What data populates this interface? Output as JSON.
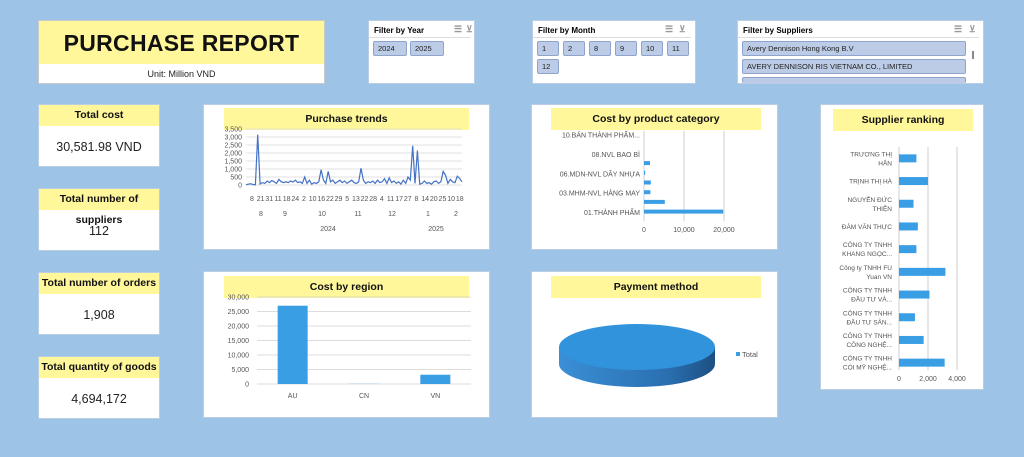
{
  "header": {
    "title": "PURCHASE REPORT",
    "unit": "Unit: Million VND"
  },
  "kpis": [
    {
      "label": "Total cost",
      "value": "30,581.98 VND"
    },
    {
      "label": "Total number of suppliers",
      "value": "112"
    },
    {
      "label": "Total number of orders",
      "value": "1,908"
    },
    {
      "label": "Total quantity of goods",
      "value": "4,694,172"
    }
  ],
  "filters": {
    "year": {
      "title": "Filter by Year",
      "options": [
        "2024",
        "2025"
      ]
    },
    "month": {
      "title": "Filter by Month",
      "options": [
        "1",
        "2",
        "8",
        "9",
        "10",
        "11",
        "12"
      ]
    },
    "suppliers": {
      "title": "Filter by Suppliers",
      "options": [
        "Avery Dennison Hong Kong B.V",
        "AVERY DENNISON RIS VIETNAM CO., LIMITED"
      ]
    },
    "icons": [
      "multi-select-icon",
      "clear-filter-icon"
    ]
  },
  "colors": {
    "bar": "#3a9ee4",
    "line": "#4472c4",
    "title_bg": "#fff79a",
    "background": "#9dc3e6"
  },
  "chart_data": [
    {
      "id": "trends",
      "type": "line",
      "title": "Purchase trends",
      "ylim": [
        0,
        3500
      ],
      "yticks": [
        "0",
        "500",
        "1,000",
        "1,500",
        "2,000",
        "2,500",
        "3,000",
        "3,500"
      ],
      "day_labels": [
        "8",
        "21",
        "31",
        "11",
        "18",
        "24",
        "2",
        "10",
        "16",
        "22",
        "29",
        "5",
        "13",
        "22",
        "28",
        "4",
        "11",
        "17",
        "27",
        "8",
        "14",
        "20",
        "25",
        "10",
        "18"
      ],
      "month_labels": [
        "8",
        "9",
        "10",
        "11",
        "12",
        "1",
        "2"
      ],
      "year_labels": [
        "2024",
        "2025"
      ],
      "values": [
        20,
        50,
        80,
        30,
        10,
        3150,
        60,
        150,
        100,
        250,
        150,
        280,
        200,
        100,
        350,
        200,
        150,
        200,
        150,
        250,
        180,
        300,
        150,
        200,
        100,
        500,
        100,
        300,
        50,
        150,
        100,
        200,
        950,
        300,
        100,
        850,
        200,
        300,
        100,
        200,
        300,
        150,
        250,
        100,
        200,
        300,
        150,
        100,
        200,
        1050,
        300,
        100,
        200,
        150,
        250,
        100,
        300,
        150,
        200,
        400,
        100,
        450,
        150,
        250,
        100,
        200,
        50,
        300,
        100,
        500,
        300,
        2450,
        100,
        2150,
        50,
        100,
        250,
        100,
        150,
        50,
        200,
        250,
        100,
        200,
        850,
        600,
        100,
        350,
        200,
        150,
        550,
        400,
        200
      ]
    },
    {
      "id": "category",
      "type": "bar",
      "orientation": "horizontal",
      "title": "Cost by product category",
      "categories": [
        "10.BÁN THÀNH PHẨM...",
        "",
        "08.NVL BAO BÌ",
        "",
        "06.MDN-NVL DÂY NHỰA",
        "",
        "03.MHM-NVL HÀNG MAY",
        "",
        "01.THÀNH PHẨM"
      ],
      "values": [
        0,
        0,
        1500,
        300,
        1700,
        1600,
        5200,
        19800,
        0
      ],
      "xlim": [
        0,
        25000
      ],
      "xticks": [
        "0",
        "10,000",
        "20,000"
      ]
    },
    {
      "id": "supplier",
      "type": "bar",
      "orientation": "horizontal",
      "title": "Supplier ranking",
      "categories": [
        [
          "TRƯƠNG THỊ",
          "HÂN"
        ],
        [
          "TRỊNH THỊ HÀ"
        ],
        [
          "NGUYỄN ĐỨC",
          "THIỆN"
        ],
        [
          "ĐÀM VĂN THỰC"
        ],
        [
          "CÔNG TY TNHH",
          "KHANG NGỌC..."
        ],
        [
          "Công ty TNHH FU",
          "Yuan VN"
        ],
        [
          "CÔNG TY TNHH",
          "ĐẦU TƯ VÀ..."
        ],
        [
          "CÔNG TY TNHH",
          "ĐẦU TƯ SẢN..."
        ],
        [
          "CÔNG TY TNHH",
          "CÔNG NGHỆ..."
        ],
        [
          "CÔNG TY TNHH",
          "CÓI MỸ NGHỆ..."
        ]
      ],
      "values": [
        1200,
        2000,
        1000,
        1300,
        1200,
        3200,
        2100,
        1100,
        1700,
        3150
      ],
      "xlim": [
        0,
        4000
      ],
      "xticks": [
        "0",
        "2,000",
        "4,000"
      ]
    },
    {
      "id": "region",
      "type": "bar",
      "title": "Cost by region",
      "categories": [
        "AU",
        "CN",
        "VN"
      ],
      "values": [
        27000,
        50,
        3200
      ],
      "ylim": [
        0,
        30000
      ],
      "yticks": [
        "0",
        "5,000",
        "10,000",
        "15,000",
        "20,000",
        "25,000",
        "30,000"
      ]
    },
    {
      "id": "payment",
      "type": "pie",
      "title": "Payment method",
      "categories": [
        "Total"
      ],
      "values": [
        100
      ],
      "legend": "right"
    }
  ]
}
